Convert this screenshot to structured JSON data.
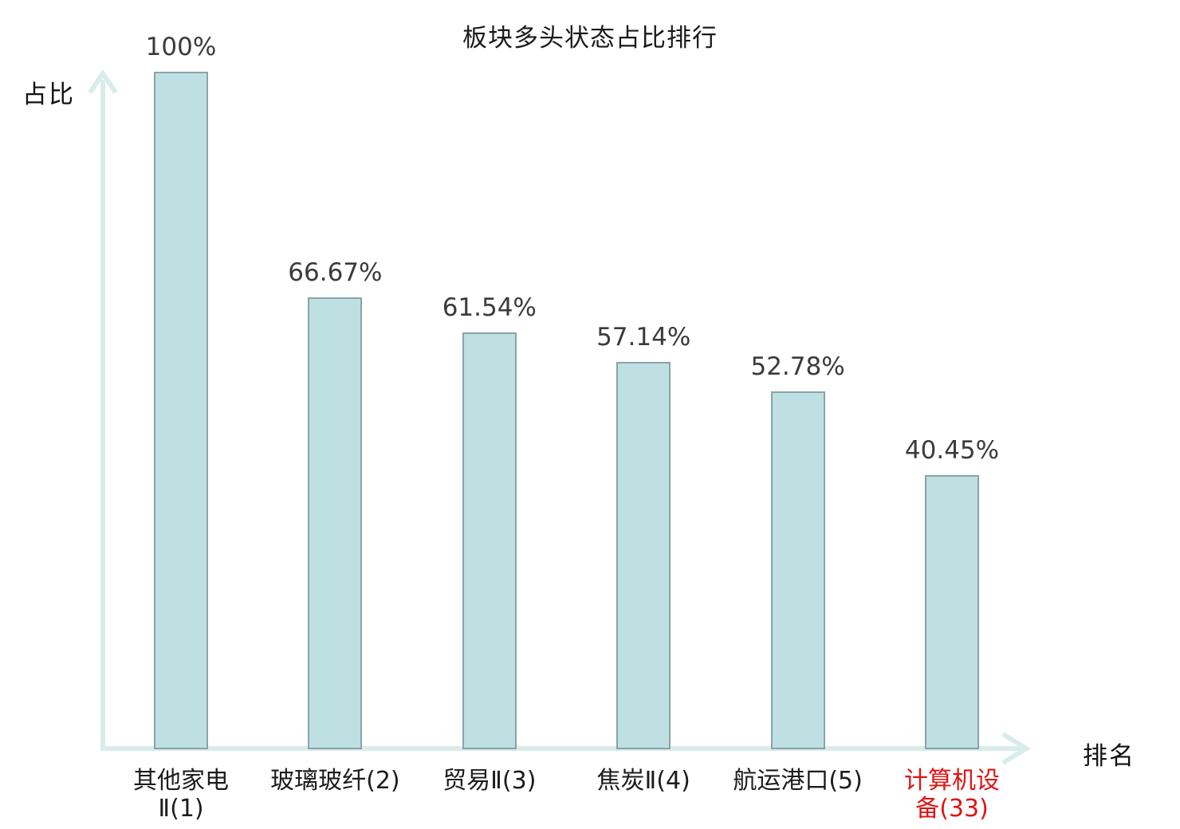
{
  "chart_data": {
    "type": "bar",
    "title": "板块多头状态占比排行",
    "xlabel": "排名",
    "ylabel": "占比",
    "categories": [
      "其他家电Ⅱ(1)",
      "玻璃玻纤(2)",
      "贸易Ⅱ(3)",
      "焦炭Ⅱ(4)",
      "航运港口(5)",
      "计算机设备(33)"
    ],
    "values": [
      100,
      66.67,
      61.54,
      57.14,
      52.78,
      40.45
    ],
    "ylim": [
      0,
      100
    ],
    "grid": false,
    "legend": null,
    "bars": [
      {
        "value": 100,
        "label": "100%",
        "lines": [
          "其他家电",
          "Ⅱ(1)"
        ],
        "highlight": false
      },
      {
        "value": 66.67,
        "label": "66.67%",
        "lines": [
          "玻璃玻纤(2)"
        ],
        "highlight": false
      },
      {
        "value": 61.54,
        "label": "61.54%",
        "lines": [
          "贸易Ⅱ(3)"
        ],
        "highlight": false
      },
      {
        "value": 57.14,
        "label": "57.14%",
        "lines": [
          "焦炭Ⅱ(4)"
        ],
        "highlight": false
      },
      {
        "value": 52.78,
        "label": "52.78%",
        "lines": [
          "航运港口(5)"
        ],
        "highlight": false
      },
      {
        "value": 40.45,
        "label": "40.45%",
        "lines": [
          "计算机设",
          "备(33)"
        ],
        "highlight": true
      }
    ],
    "colors": {
      "bar_fill": "#bfe0e3",
      "bar_border": "#8aa3a8",
      "axis": "#d9ece9",
      "value_text": "#3b3b3b",
      "category_text": "#1c1c1c",
      "highlight_text": "#df1414",
      "title_text": "#1a1a1a"
    }
  }
}
